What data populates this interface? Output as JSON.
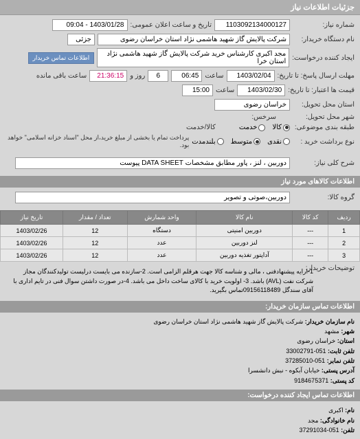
{
  "sections": {
    "main_header": "جزئیات اطلاعات نیاز",
    "goods_header": "اطلاعات کالاهای مورد نیاز",
    "buyer_contact_header": "اطلاعات تماس سازمان خریدار:",
    "creator_contact_header": "اطلاعات تماس ایجاد کننده درخواست:"
  },
  "labels": {
    "need_number": "شماره نیاز:",
    "announce_datetime": "تاریخ و ساعت اعلان عمومی:",
    "buyer_org": "نام دستگاه خریدار:",
    "request_creator": "ایجاد کننده درخواست:",
    "reply_deadline": "مهلت ارسال پاسخ: تا تاریخ:",
    "time": "ساعت",
    "remaining": "روز و",
    "remaining2": "ساعت باقی مانده",
    "validity": "قیمت ها اعتبار: تا تاریخ:",
    "delivery_province": "استان محل تحویل:",
    "delivery_city": "شهر محل تحویل:",
    "confidential": "سرخس:",
    "pack_category": "طبقه بندی موضوعی:",
    "cash_credit": "کالا/خدمت",
    "pay_type": "نوع برداشت خرید :",
    "title_key": "شرح کلی نیاز:",
    "goods_group": "گروه کالا:",
    "notes_label": "توضیحات خریدار:",
    "buyer_contact_btn": "اطلاعات تماس خریدار"
  },
  "values": {
    "need_number": "1103092134000127",
    "announce_datetime": "1403/01/28 - 09:04",
    "buyer_org": "شرکت پالایش گاز شهید هاشمی نژاد    استان خراسان رضوی",
    "request_creator": "مجد اکبری کارشناس خرید شرکت پالایش گاز شهید هاشمی نژاد    استان خرا",
    "reply_date": "1403/02/04",
    "reply_time": "06:45",
    "remain_days": "6",
    "remain_time": "21:36:15",
    "validity_date": "1403/02/30",
    "validity_time": "15:00",
    "delivery_province": "خراسان رضوی",
    "partial": "جزئی",
    "pay_desc": "پرداخت تمام یا بخشی از مبلغ خرید،از محل \"اسناد خزانه اسلامی\" خواهد بود.",
    "title_key": "دوربین ، لنز ، پاور مطابق مشخصات DATA SHEET پیوست",
    "goods_group": "دوربین،صوتی و تصویر"
  },
  "radios": {
    "type1": "کالا",
    "type2": "خدمت",
    "pay1": "نقدی",
    "pay2": "متوسط",
    "pay3": "بلندمدت"
  },
  "table": {
    "cols": [
      "ردیف",
      "کد کالا",
      "نام کالا",
      "واحد شمارش",
      "تعداد / مقدار",
      "تاریخ نیاز"
    ],
    "rows": [
      [
        "1",
        "---",
        "دوربین امنیتی",
        "دستگاه",
        "12",
        "1403/02/26"
      ],
      [
        "2",
        "---",
        "لنز دوربین",
        "عدد",
        "12",
        "1403/02/26"
      ],
      [
        "3",
        "---",
        "آداپتور تغذیه دوربین",
        "عدد",
        "12",
        "1403/02/26"
      ]
    ]
  },
  "notes": "1-ارایه پیشنهادفنی ، مالی و شناسه کالا جهت هرقلم الزامی است. 2-سازنده می بایست درلیست تولیدکنندگان مجاز شرکت نفت (AVL) باشد. 3- اولویت خرید با کالای ساخت داخل می باشد. 4-در صورت داشتن سوال فنی در تایم اداری با آقای سندگل 09156118489تماس بگیرید.",
  "buyer_contact": {
    "org_label": "نام سازمان خریدار:",
    "org": "شرکت پالایش گاز شهید هاشمی نژاد استان خراسان رضوی",
    "city_label": "شهر:",
    "city": "مشهد",
    "province_label": "استان:",
    "province": "خراسان رضوی",
    "tel_label": "تلفن ثابت:",
    "tel": "051-33002791",
    "fax_label": "تلفن نمابر:",
    "fax": "051-37285010",
    "addr_label": "آدرس پستی:",
    "addr": "خیابان آبکوه - نبش دانشسرا",
    "post_label": "کد پستی:",
    "post": "9184675371"
  },
  "creator_contact": {
    "name_label": "نام:",
    "name": "اکبری",
    "family_label": "نام خانوادگی:",
    "family": "مجد",
    "tel_label": "تلفن:",
    "tel": "051-37291034"
  }
}
